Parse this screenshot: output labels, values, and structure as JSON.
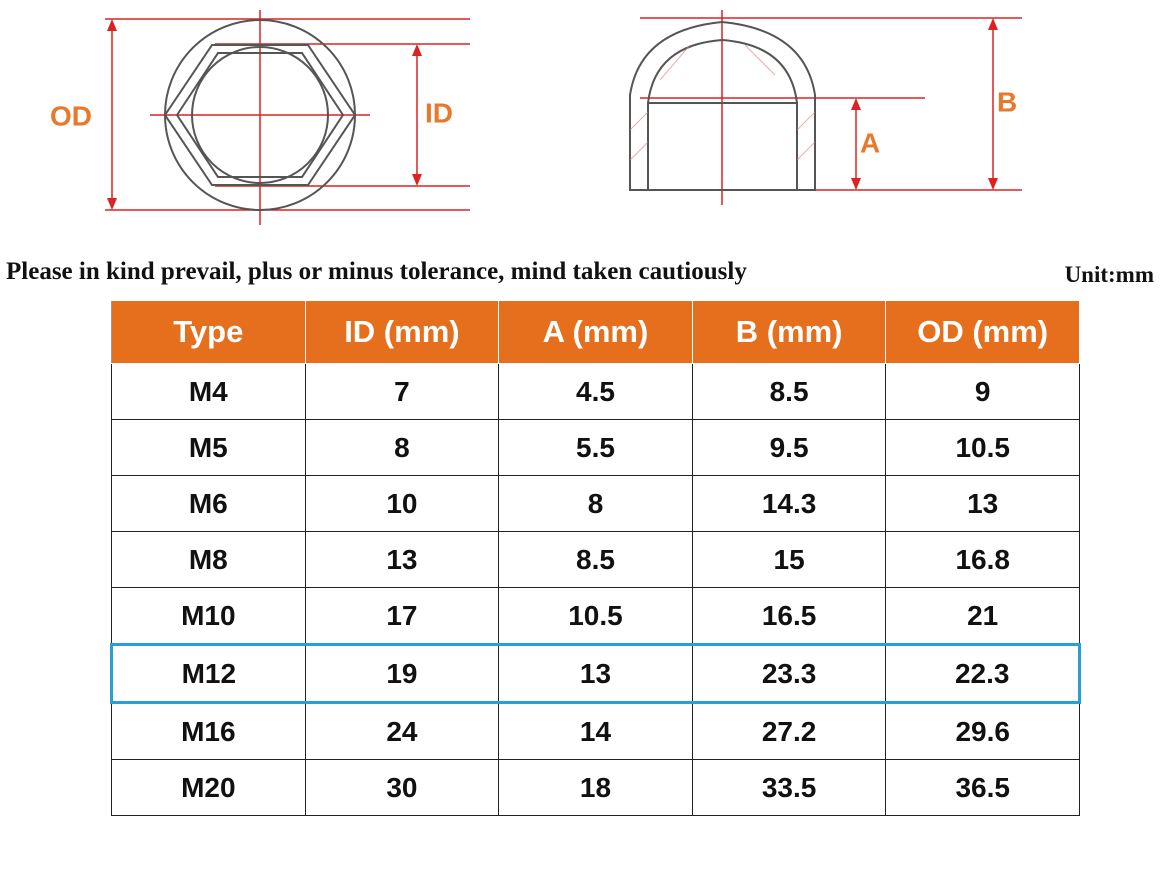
{
  "diagram": {
    "od_label": "OD",
    "id_label": "ID",
    "a_label": "A",
    "b_label": "B"
  },
  "note": "Please in kind prevail, plus or minus tolerance, mind taken cautiously",
  "unit": "Unit:mm",
  "table": {
    "header": [
      "Type",
      "ID (mm)",
      "A (mm)",
      "B (mm)",
      "OD (mm)"
    ],
    "rows": [
      [
        "M4",
        "7",
        "4.5",
        "8.5",
        "9"
      ],
      [
        "M5",
        "8",
        "5.5",
        "9.5",
        "10.5"
      ],
      [
        "M6",
        "10",
        "8",
        "14.3",
        "13"
      ],
      [
        "M8",
        "13",
        "8.5",
        "15",
        "16.8"
      ],
      [
        "M10",
        "17",
        "10.5",
        "16.5",
        "21"
      ],
      [
        "M12",
        "19",
        "13",
        "23.3",
        "22.3"
      ],
      [
        "M16",
        "24",
        "14",
        "27.2",
        "29.6"
      ],
      [
        "M20",
        "30",
        "18",
        "33.5",
        "36.5"
      ]
    ]
  }
}
